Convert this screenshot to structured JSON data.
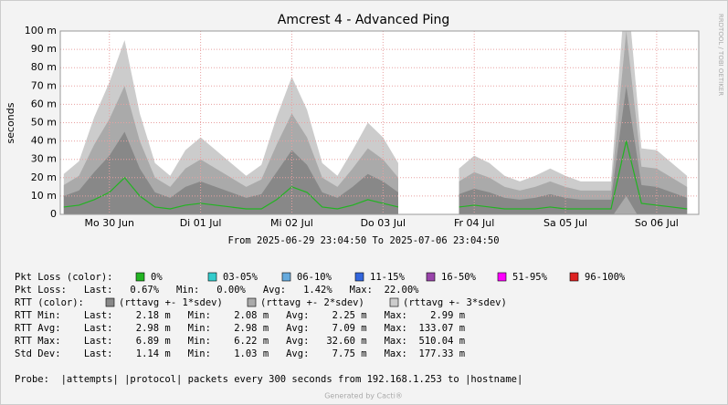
{
  "chart_data": {
    "type": "line",
    "title": "Amcrest 4 - Advanced Ping",
    "y_label": "seconds",
    "watermark": "RRDTOOL / TOBI OETIKER",
    "footer": "From 2025-06-29 23:04:50 To 2025-07-06 23:04:50",
    "generated": "Generated by Cacti®",
    "xlim": [
      "2025-06-29 23:04:50",
      "2025-07-06 23:04:50"
    ],
    "xticks": [
      {
        "value": "2025-06-30 12:00",
        "label": "Mo 30 Jun"
      },
      {
        "value": "2025-07-01 12:00",
        "label": "Di 01 Jul"
      },
      {
        "value": "2025-07-02 12:00",
        "label": "Mi 02 Jul"
      },
      {
        "value": "2025-07-03 12:00",
        "label": "Do 03 Jul"
      },
      {
        "value": "2025-07-04 12:00",
        "label": "Fr 04 Jul"
      },
      {
        "value": "2025-07-05 12:00",
        "label": "Sa 05 Jul"
      },
      {
        "value": "2025-07-06 12:00",
        "label": "So 06 Jul"
      }
    ],
    "ylim": [
      0,
      0.1
    ],
    "yticks": [
      {
        "value": 0,
        "label": "0"
      },
      {
        "value": 0.01,
        "label": "10 m"
      },
      {
        "value": 0.02,
        "label": "20 m"
      },
      {
        "value": 0.03,
        "label": "30 m"
      },
      {
        "value": 0.04,
        "label": "40 m"
      },
      {
        "value": 0.05,
        "label": "50 m"
      },
      {
        "value": 0.06,
        "label": "60 m"
      },
      {
        "value": 0.07,
        "label": "70 m"
      },
      {
        "value": 0.08,
        "label": "80 m"
      },
      {
        "value": 0.09,
        "label": "90 m"
      },
      {
        "value": 0.1,
        "label": "100 m"
      }
    ],
    "grid": true,
    "x": [
      "2025-06-30 00:00",
      "2025-06-30 04:00",
      "2025-06-30 08:00",
      "2025-06-30 12:00",
      "2025-06-30 16:00",
      "2025-06-30 20:00",
      "2025-07-01 00:00",
      "2025-07-01 04:00",
      "2025-07-01 08:00",
      "2025-07-01 12:00",
      "2025-07-01 16:00",
      "2025-07-01 20:00",
      "2025-07-02 00:00",
      "2025-07-02 04:00",
      "2025-07-02 08:00",
      "2025-07-02 12:00",
      "2025-07-02 16:00",
      "2025-07-02 20:00",
      "2025-07-03 00:00",
      "2025-07-03 04:00",
      "2025-07-03 08:00",
      "2025-07-03 12:00",
      "2025-07-03 16:00",
      "2025-07-03 20:00",
      "2025-07-04 00:00",
      "2025-07-04 04:00",
      "2025-07-04 08:00",
      "2025-07-04 12:00",
      "2025-07-04 16:00",
      "2025-07-04 20:00",
      "2025-07-05 00:00",
      "2025-07-05 04:00",
      "2025-07-05 08:00",
      "2025-07-05 12:00",
      "2025-07-05 16:00",
      "2025-07-05 20:00",
      "2025-07-06 00:00",
      "2025-07-06 04:00",
      "2025-07-06 08:00",
      "2025-07-06 12:00",
      "2025-07-06 16:00",
      "2025-07-06 20:00"
    ],
    "series": [
      {
        "name": "0%",
        "color": "#22b422",
        "values": [
          0.004,
          0.005,
          0.008,
          0.012,
          0.02,
          0.01,
          0.004,
          0.003,
          0.005,
          0.006,
          0.005,
          0.004,
          0.003,
          0.003,
          0.008,
          0.015,
          0.012,
          0.004,
          0.003,
          0.005,
          0.008,
          0.006,
          0.004,
          null,
          null,
          null,
          0.004,
          0.005,
          0.004,
          0.003,
          0.003,
          0.003,
          0.004,
          0.003,
          0.003,
          0.003,
          0.003,
          0.04,
          0.006,
          0.005,
          0.004,
          0.003
        ]
      }
    ],
    "sdev": {
      "values": [
        0.006,
        0.008,
        0.015,
        0.02,
        0.025,
        0.015,
        0.008,
        0.006,
        0.01,
        0.012,
        0.01,
        0.008,
        0.006,
        0.008,
        0.015,
        0.02,
        0.015,
        0.008,
        0.006,
        0.01,
        0.014,
        0.012,
        0.008,
        null,
        null,
        null,
        0.007,
        0.009,
        0.008,
        0.006,
        0.005,
        0.006,
        0.007,
        0.006,
        0.005,
        0.005,
        0.005,
        0.03,
        0.01,
        0.01,
        0.008,
        0.006
      ]
    },
    "loss_label": "Pkt Loss (color):",
    "loss_colors": [
      {
        "name": "0%",
        "color": "#22b422"
      },
      {
        "name": "03-05%",
        "color": "#33cccc"
      },
      {
        "name": "06-10%",
        "color": "#66aadd"
      },
      {
        "name": "11-15%",
        "color": "#3366dd"
      },
      {
        "name": "16-50%",
        "color": "#9944aa"
      },
      {
        "name": "51-95%",
        "color": "#ff00ff"
      },
      {
        "name": "96-100%",
        "color": "#dd2222"
      }
    ],
    "rtt_label": "RTT (color):",
    "bands": [
      {
        "name": "(rttavg +- 1*sdev)",
        "color": "#888888"
      },
      {
        "name": "(rttavg +- 2*sdev)",
        "color": "#aaaaaa"
      },
      {
        "name": "(rttavg +- 3*sdev)",
        "color": "#cccccc"
      }
    ],
    "stats": [
      "Pkt Loss:   Last:   0.67%   Min:   0.00%   Avg:   1.42%   Max:  22.00%",
      "RTT Min:    Last:    2.18 m   Min:    2.08 m   Avg:    2.25 m   Max:    2.99 m",
      "RTT Avg:    Last:    2.98 m   Min:    2.98 m   Avg:    7.09 m   Max:  133.07 m",
      "RTT Max:    Last:    6.89 m   Min:    6.22 m   Avg:   32.60 m   Max:  510.04 m",
      "Std Dev:    Last:    1.14 m   Min:    1.03 m   Avg:    7.75 m   Max:  177.33 m"
    ],
    "probe": "Probe:  |attempts| |protocol| packets every 300 seconds from 192.168.1.253 to |hostname|"
  }
}
